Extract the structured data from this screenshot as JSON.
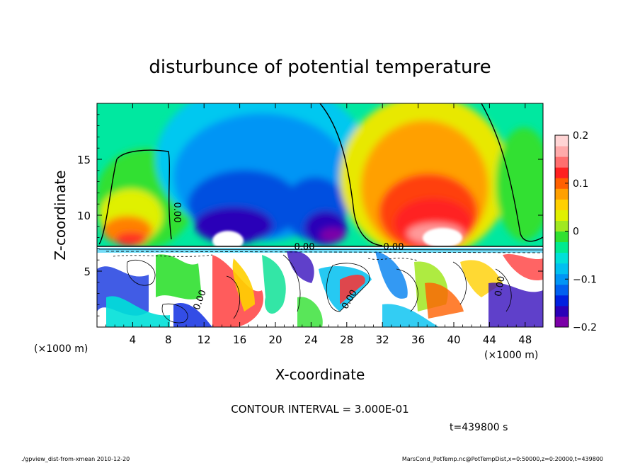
{
  "chart_data": {
    "type": "heatmap",
    "title": "disturbunce of potential temperature",
    "xlabel": "X-coordinate",
    "ylabel": "Z-coordinate",
    "x_unit_left": "(×1000 m)",
    "x_unit_right": "(×1000 m)",
    "xlim": [
      0,
      50
    ],
    "ylim": [
      0,
      20
    ],
    "x_ticks": [
      4,
      8,
      12,
      16,
      20,
      24,
      28,
      32,
      36,
      40,
      44,
      48
    ],
    "y_ticks": [
      5,
      10,
      15
    ],
    "colorbar": {
      "range": [
        -0.2,
        0.2
      ],
      "tick_values": [
        0.2,
        0.1,
        0,
        -0.1,
        -0.2
      ],
      "tick_labels": [
        "0.2",
        "0.1",
        "0",
        "−0.1",
        "−0.2"
      ],
      "colors": [
        "#7b00a8",
        "#2a00b8",
        "#0020e0",
        "#0060f0",
        "#0095f5",
        "#00c0f0",
        "#00e0d8",
        "#00ea90",
        "#30e030",
        "#a0e820",
        "#e0f000",
        "#ffd000",
        "#ffa000",
        "#ff6000",
        "#ff2020",
        "#ff6e6e",
        "#ffaaaa",
        "#ffd4d4"
      ]
    },
    "contour_labels": [
      "0.00",
      "0.00",
      "0.00",
      "0.00",
      "0.00",
      "0.00"
    ],
    "contour_interval_text": "CONTOUR INTERVAL = 3.000E-01",
    "time_text": "t=439800 s"
  },
  "footer": {
    "left": "./gpview_dist-from-xmean   2010-12-20",
    "right": "MarsCond_PotTemp.nc@PotTempDist,x=0:50000,z=0:20000,t=439800"
  }
}
